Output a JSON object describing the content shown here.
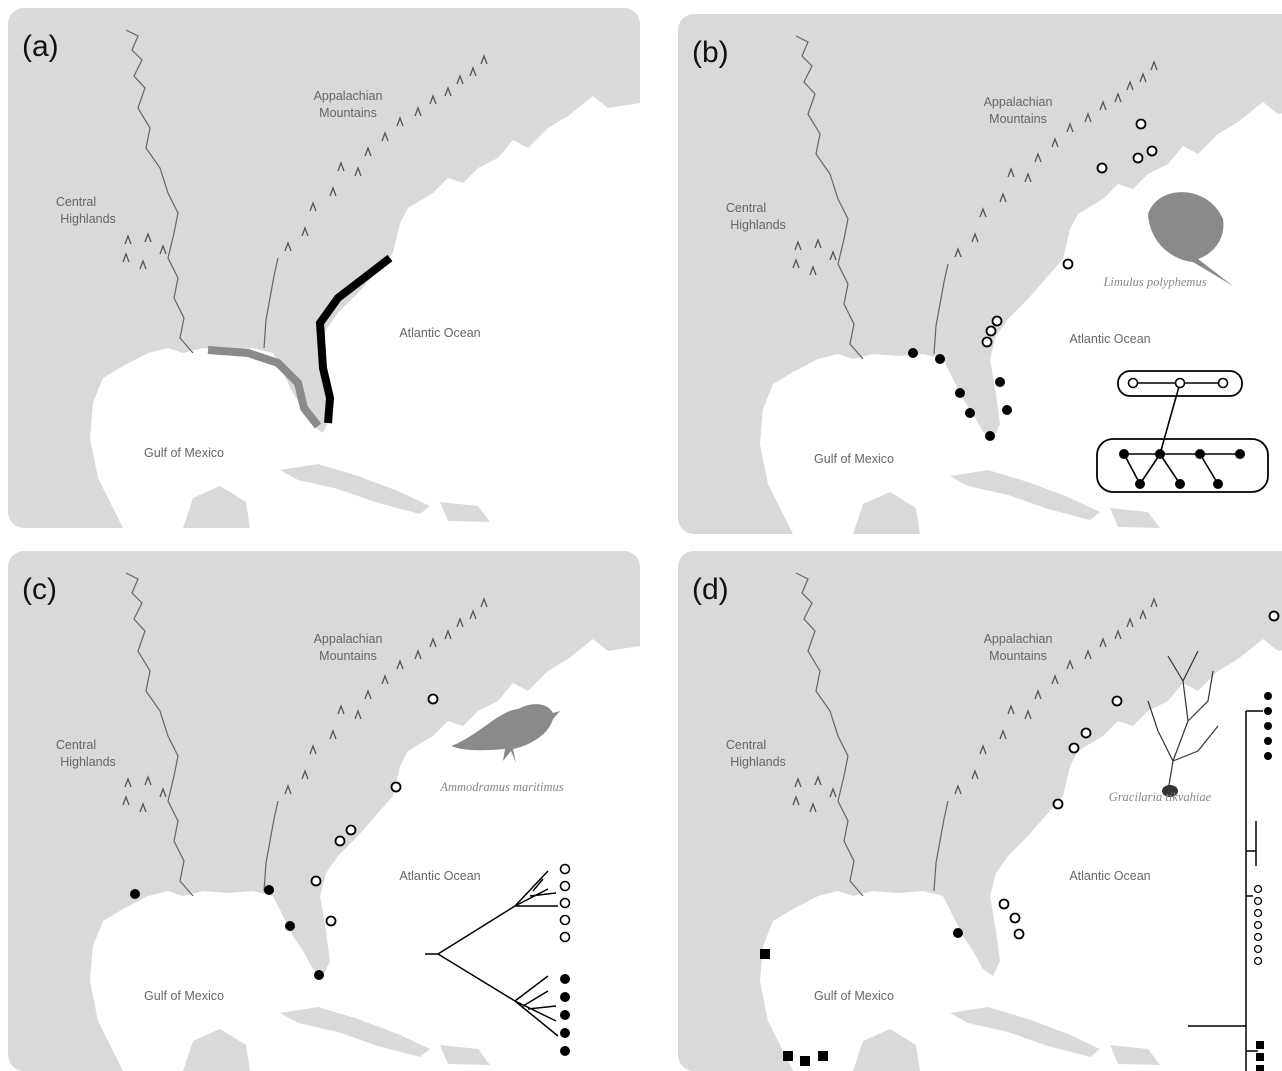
{
  "panels": [
    {
      "label": "(a)",
      "mountains": [
        "Appalachian",
        "Mountains"
      ],
      "highlands": [
        "Central",
        "Highlands"
      ],
      "ocean": "Atlantic Ocean",
      "gulf": "Gulf of Mexico"
    },
    {
      "label": "(b)",
      "mountains": [
        "Appalachian",
        "Mountains"
      ],
      "highlands": [
        "Central",
        "Highlands"
      ],
      "ocean": "Atlantic Ocean",
      "gulf": "Gulf of Mexico",
      "species": "Limulus polyphemus"
    },
    {
      "label": "(c)",
      "mountains": [
        "Appalachian",
        "Mountains"
      ],
      "highlands": [
        "Central",
        "Highlands"
      ],
      "ocean": "Atlantic Ocean",
      "gulf": "Gulf of Mexico",
      "species": "Ammodramus maritimus"
    },
    {
      "label": "(d)",
      "mountains": [
        "Appalachian",
        "Mountains"
      ],
      "highlands": [
        "Central",
        "Highlands"
      ],
      "ocean": "Atlantic Ocean",
      "gulf": "Gulf of Mexico",
      "species": "Gracilaria tikvahiae"
    }
  ]
}
